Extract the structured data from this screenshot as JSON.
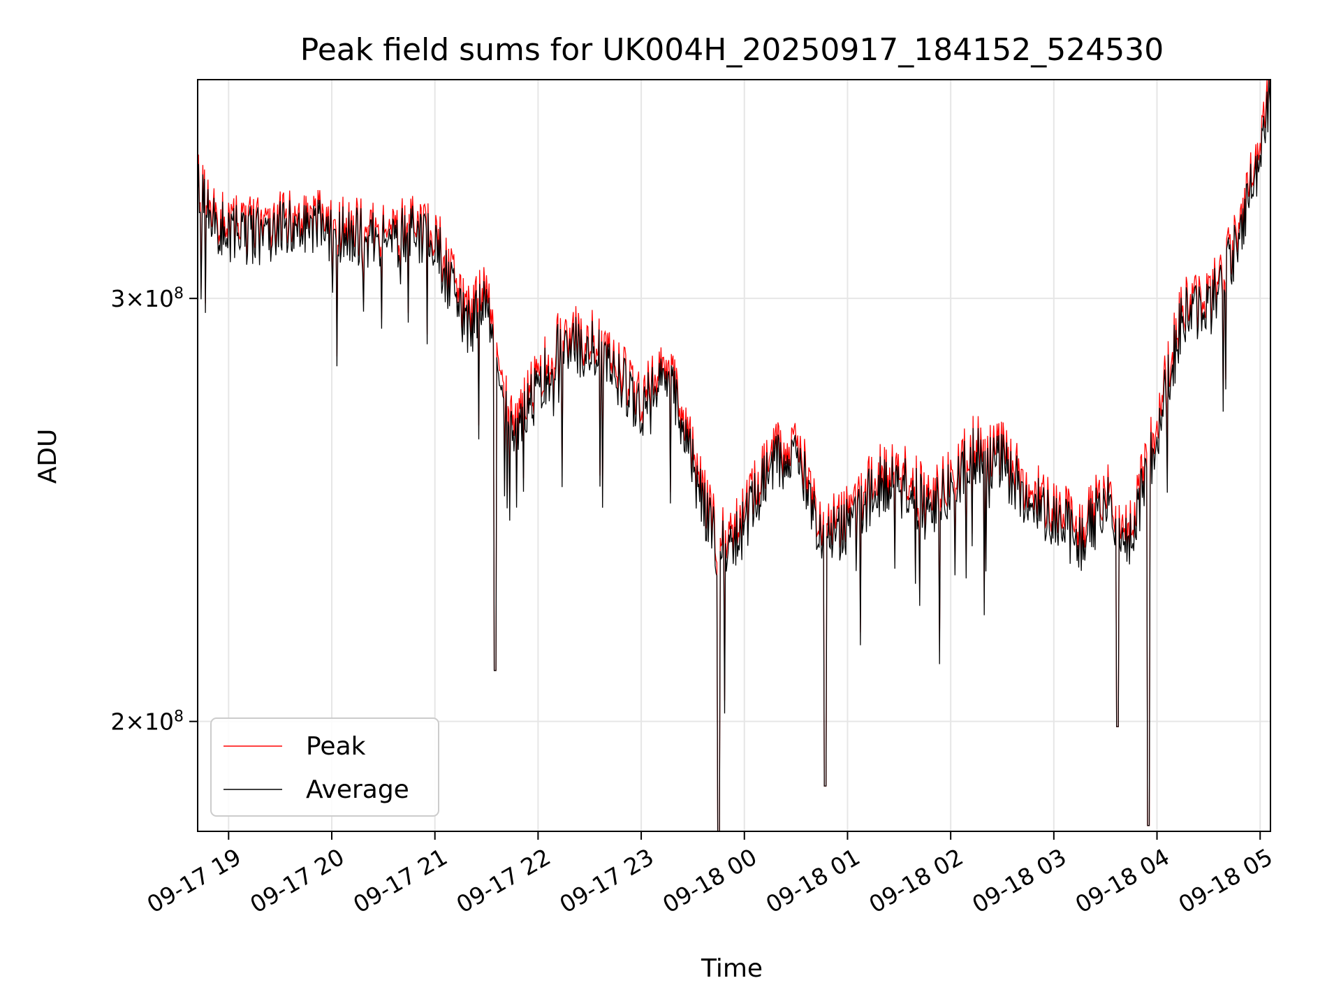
{
  "chart_data": {
    "type": "line",
    "title": "Peak field sums for UK004H_20250917_184152_524530",
    "xlabel": "Time",
    "ylabel": "ADU",
    "y_scale": "log",
    "ylim": [
      180000000,
      370000000
    ],
    "xlim": [
      "2025-09-17 18:42",
      "2025-09-18 05:06"
    ],
    "grid": true,
    "legend_position": "lower-left",
    "x_ticks": [
      {
        "t": "2025-09-17 19:00",
        "label": "09-17 19"
      },
      {
        "t": "2025-09-17 20:00",
        "label": "09-17 20"
      },
      {
        "t": "2025-09-17 21:00",
        "label": "09-17 21"
      },
      {
        "t": "2025-09-17 22:00",
        "label": "09-17 22"
      },
      {
        "t": "2025-09-17 23:00",
        "label": "09-17 23"
      },
      {
        "t": "2025-09-18 00:00",
        "label": "09-18 00"
      },
      {
        "t": "2025-09-18 01:00",
        "label": "09-18 01"
      },
      {
        "t": "2025-09-18 02:00",
        "label": "09-18 02"
      },
      {
        "t": "2025-09-18 03:00",
        "label": "09-18 03"
      },
      {
        "t": "2025-09-18 04:00",
        "label": "09-18 04"
      },
      {
        "t": "2025-09-18 05:00",
        "label": "09-18 05"
      }
    ],
    "y_ticks": [
      {
        "value": 200000000,
        "base": "2",
        "exp": "8"
      },
      {
        "value": 300000000,
        "base": "3",
        "exp": "8"
      }
    ],
    "colors": {
      "Peak": "#ff0000",
      "Average": "#000000",
      "grid": "#e6e6e6"
    },
    "series": [
      {
        "name": "Peak",
        "x": [
          "2025-09-17 18:42",
          "2025-09-17 18:45",
          "2025-09-17 18:50",
          "2025-09-17 19:00",
          "2025-09-17 19:15",
          "2025-09-17 19:30",
          "2025-09-17 19:45",
          "2025-09-17 20:00",
          "2025-09-17 20:15",
          "2025-09-17 20:30",
          "2025-09-17 20:45",
          "2025-09-17 21:00",
          "2025-09-17 21:10",
          "2025-09-17 21:20",
          "2025-09-17 21:30",
          "2025-09-17 21:35",
          "2025-09-17 21:45",
          "2025-09-17 22:00",
          "2025-09-17 22:15",
          "2025-09-17 22:30",
          "2025-09-17 22:45",
          "2025-09-17 23:00",
          "2025-09-17 23:15",
          "2025-09-17 23:30",
          "2025-09-17 23:45",
          "2025-09-18 00:00",
          "2025-09-18 00:15",
          "2025-09-18 00:30",
          "2025-09-18 00:45",
          "2025-09-18 01:00",
          "2025-09-18 01:15",
          "2025-09-18 01:30",
          "2025-09-18 01:45",
          "2025-09-18 02:00",
          "2025-09-18 02:15",
          "2025-09-18 02:30",
          "2025-09-18 02:45",
          "2025-09-18 03:00",
          "2025-09-18 03:15",
          "2025-09-18 03:30",
          "2025-09-18 03:45",
          "2025-09-18 04:00",
          "2025-09-18 04:15",
          "2025-09-18 04:30",
          "2025-09-18 04:45",
          "2025-09-18 05:00",
          "2025-09-18 05:05"
        ],
        "values": [
          335000000,
          332000000,
          326000000,
          323000000,
          321000000,
          324000000,
          325000000,
          323000000,
          321000000,
          320000000,
          322000000,
          320000000,
          305000000,
          295000000,
          303000000,
          282000000,
          268000000,
          278000000,
          290000000,
          289000000,
          282000000,
          272000000,
          283000000,
          258000000,
          238000000,
          244000000,
          258000000,
          262000000,
          242000000,
          244000000,
          252000000,
          257000000,
          248000000,
          252000000,
          262000000,
          259000000,
          250000000,
          247000000,
          240000000,
          250000000,
          240000000,
          268000000,
          298000000,
          300000000,
          317000000,
          348000000,
          368000000
        ]
      },
      {
        "name": "Average",
        "x": [
          "2025-09-17 18:42",
          "2025-09-17 18:45",
          "2025-09-17 18:50",
          "2025-09-17 19:00",
          "2025-09-17 19:15",
          "2025-09-17 19:30",
          "2025-09-17 19:45",
          "2025-09-17 20:00",
          "2025-09-17 20:15",
          "2025-09-17 20:30",
          "2025-09-17 20:45",
          "2025-09-17 21:00",
          "2025-09-17 21:10",
          "2025-09-17 21:20",
          "2025-09-17 21:30",
          "2025-09-17 21:35",
          "2025-09-17 21:45",
          "2025-09-17 22:00",
          "2025-09-17 22:15",
          "2025-09-17 22:30",
          "2025-09-17 22:45",
          "2025-09-17 23:00",
          "2025-09-17 23:15",
          "2025-09-17 23:30",
          "2025-09-17 23:45",
          "2025-09-18 00:00",
          "2025-09-18 00:15",
          "2025-09-18 00:30",
          "2025-09-18 00:45",
          "2025-09-18 01:00",
          "2025-09-18 01:15",
          "2025-09-18 01:30",
          "2025-09-18 01:45",
          "2025-09-18 02:00",
          "2025-09-18 02:15",
          "2025-09-18 02:30",
          "2025-09-18 02:45",
          "2025-09-18 03:00",
          "2025-09-18 03:15",
          "2025-09-18 03:30",
          "2025-09-18 03:45",
          "2025-09-18 04:00",
          "2025-09-18 04:15",
          "2025-09-18 04:30",
          "2025-09-18 04:45",
          "2025-09-18 05:00",
          "2025-09-18 05:05"
        ],
        "values": [
          332000000,
          329000000,
          323000000,
          320000000,
          318000000,
          321000000,
          322000000,
          320000000,
          318000000,
          317000000,
          319000000,
          317000000,
          301000000,
          291000000,
          299000000,
          278000000,
          264000000,
          275000000,
          287000000,
          286000000,
          279000000,
          269000000,
          280000000,
          255000000,
          235000000,
          241000000,
          255000000,
          259000000,
          239000000,
          241000000,
          249000000,
          254000000,
          245000000,
          249000000,
          259000000,
          256000000,
          247000000,
          244000000,
          237000000,
          247000000,
          237000000,
          264000000,
          295000000,
          297000000,
          314000000,
          344000000,
          362000000
        ]
      }
    ],
    "dips": [
      {
        "t": "2025-09-17 21:35",
        "value": 210000000
      },
      {
        "t": "2025-09-17 23:45",
        "value": 180000000
      },
      {
        "t": "2025-09-18 00:47",
        "value": 188000000
      },
      {
        "t": "2025-09-18 03:37",
        "value": 199000000
      },
      {
        "t": "2025-09-18 03:55",
        "value": 181000000
      }
    ]
  }
}
